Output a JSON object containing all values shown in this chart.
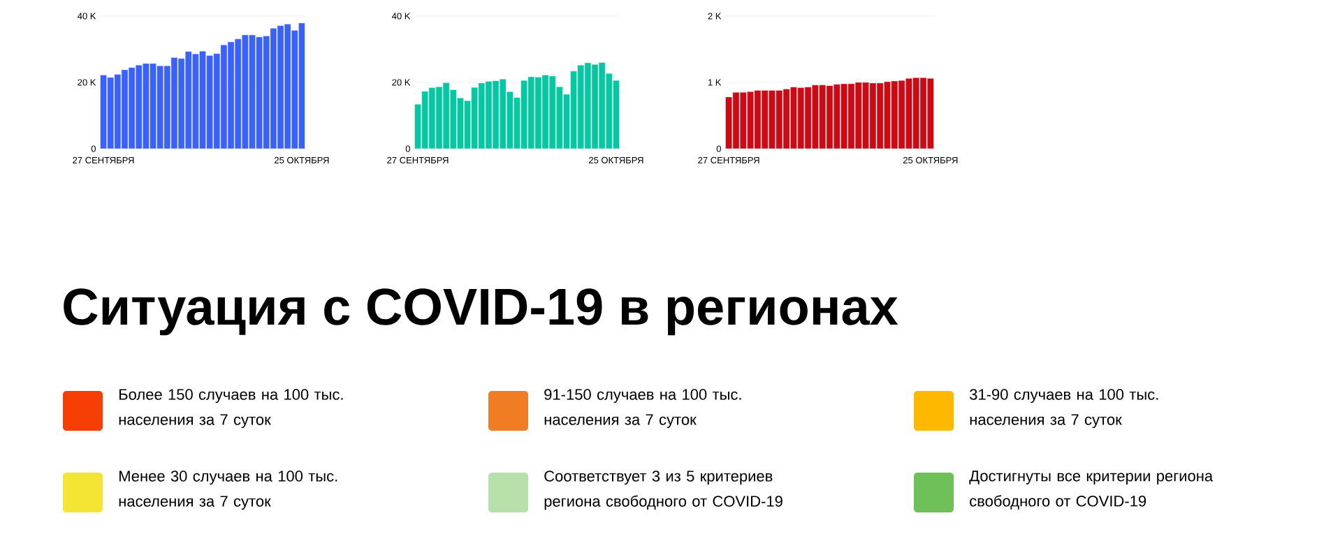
{
  "chart_data": [
    {
      "type": "bar",
      "color": "#3a62fb",
      "categories": [
        "27 СЕНТЯБРЯ",
        null,
        null,
        null,
        null,
        null,
        null,
        null,
        null,
        null,
        null,
        null,
        null,
        null,
        null,
        null,
        null,
        null,
        null,
        null,
        null,
        null,
        null,
        null,
        null,
        null,
        null,
        null,
        "25 ОКТЯБРЯ"
      ],
      "values": [
        22200,
        21500,
        22400,
        23800,
        24500,
        25200,
        25700,
        25700,
        25000,
        25000,
        27500,
        27200,
        29300,
        28600,
        29400,
        28100,
        28700,
        31300,
        32200,
        33100,
        34300,
        34300,
        33700,
        34000,
        36300,
        37100,
        37600,
        35700,
        37900
      ],
      "ylim": [
        0,
        40000
      ],
      "yticks": [
        0,
        {
          "value": 20000,
          "label": "20 K"
        },
        {
          "value": 40000,
          "label": "40 K"
        }
      ],
      "grid": "y"
    },
    {
      "type": "bar",
      "color": "#05c8a2",
      "categories": [
        "27 СЕНТЯБРЯ",
        null,
        null,
        null,
        null,
        null,
        null,
        null,
        null,
        null,
        null,
        null,
        null,
        null,
        null,
        null,
        null,
        null,
        null,
        null,
        null,
        null,
        null,
        null,
        null,
        null,
        null,
        null,
        "25 ОКТЯБРЯ"
      ],
      "values": [
        13400,
        17300,
        18400,
        18700,
        19900,
        17800,
        15300,
        14500,
        18500,
        19800,
        20300,
        20500,
        21000,
        17200,
        15400,
        20600,
        21700,
        21600,
        22200,
        21900,
        18700,
        16400,
        23400,
        25200,
        25900,
        25400,
        26000,
        22700,
        20600
      ],
      "ylim": [
        0,
        40000
      ],
      "yticks": [
        0,
        {
          "value": 20000,
          "label": "20 K"
        },
        {
          "value": 40000,
          "label": "40 K"
        }
      ],
      "grid": "y"
    },
    {
      "type": "bar",
      "color": "#cb0a15",
      "categories": [
        "27 СЕНТЯБРЯ",
        null,
        null,
        null,
        null,
        null,
        null,
        null,
        null,
        null,
        null,
        null,
        null,
        null,
        null,
        null,
        null,
        null,
        null,
        null,
        null,
        null,
        null,
        null,
        null,
        null,
        null,
        null,
        "25 ОКТЯБРЯ"
      ],
      "values": [
        780,
        850,
        850,
        860,
        880,
        880,
        880,
        880,
        900,
        930,
        920,
        930,
        960,
        960,
        950,
        970,
        980,
        980,
        1000,
        1000,
        990,
        990,
        1010,
        1020,
        1030,
        1060,
        1070,
        1070,
        1060
      ],
      "ylim": [
        0,
        2000
      ],
      "yticks": [
        0,
        {
          "value": 1000,
          "label": "1 K"
        },
        {
          "value": 2000,
          "label": "2 K"
        }
      ],
      "grid": "y"
    },
    {
      "type": "other",
      "title": "Ситуация с COVID-19 в регионах",
      "categories": [
        "Более 150 случаев на 100 тыс. населения за 7 суток",
        "91-150 случаев на 100 тыс. населения за 7 суток",
        "31-90 случаев на 100 тыс. населения за 7 суток",
        "Менее 30 случаев на 100 тыс. населения за 7 суток",
        "Соответствует 3 из 5 критериев региона свободного от COVID-19",
        "Достигнуты все критерии региона свободного от COVID-19"
      ],
      "colors": [
        "#f73f05",
        "#f07d23",
        "#ffb800",
        "#f4e534",
        "#b8e0ab",
        "#70c05a"
      ]
    }
  ]
}
